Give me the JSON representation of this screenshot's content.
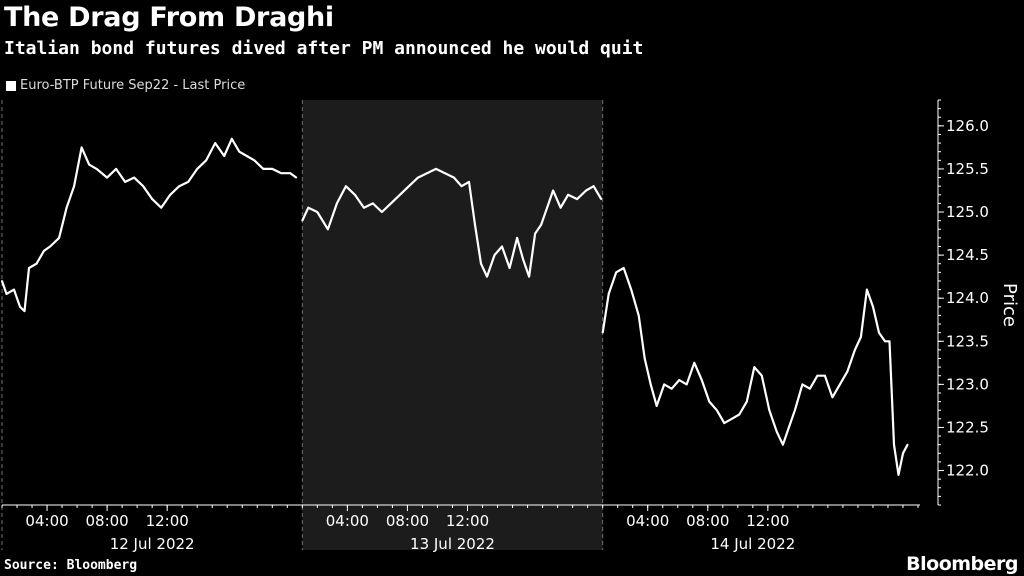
{
  "header": {
    "title": "The Drag From Draghi",
    "subtitle": "Italian bond futures dived after PM announced he would quit"
  },
  "footer": {
    "source": "Source: Bloomberg",
    "brand": "Bloomberg"
  },
  "colors": {
    "background": "#000000",
    "highlight_band": "#1c1c1c",
    "line": "#ffffff",
    "grid": "#6e6e6e"
  },
  "chart_data": {
    "type": "line",
    "ylabel": "Price",
    "ylim": [
      121.6,
      126.3
    ],
    "y_axis_side": "right",
    "y_ticks": [
      122.0,
      122.5,
      123.0,
      123.5,
      124.0,
      124.5,
      125.0,
      125.5,
      126.0
    ],
    "y_tick_labels": [
      "122.0",
      "122.5",
      "123.0",
      "123.5",
      "124.0",
      "124.5",
      "125.0",
      "125.5",
      "126.0"
    ],
    "x_unit": "hours since 12 Jul 2022 01:00",
    "xlim": [
      0,
      61
    ],
    "x_ticks": [
      3,
      7,
      11,
      23,
      27,
      31,
      43,
      47,
      51
    ],
    "x_tick_labels": [
      "04:00",
      "08:00",
      "12:00",
      "04:00",
      "08:00",
      "12:00",
      "04:00",
      "08:00",
      "12:00"
    ],
    "day_labels": [
      "12 Jul 2022",
      "13 Jul 2022",
      "14 Jul 2022"
    ],
    "day_label_centers": [
      10,
      30,
      50
    ],
    "session_separators": [
      20,
      40
    ],
    "highlighted_session": [
      20,
      40
    ],
    "legend": "Euro-BTP Future Sep22 - Last Price",
    "legend_position": "top-left",
    "grid": "vertical dashed at session boundaries",
    "series": [
      {
        "name": "Euro-BTP Future Sep22 - Last Price",
        "points": [
          [
            0.0,
            124.2
          ],
          [
            0.3,
            124.05
          ],
          [
            0.8,
            124.1
          ],
          [
            1.2,
            123.9
          ],
          [
            1.5,
            123.85
          ],
          [
            1.8,
            124.35
          ],
          [
            2.3,
            124.4
          ],
          [
            2.8,
            124.55
          ],
          [
            3.2,
            124.6
          ],
          [
            3.8,
            124.7
          ],
          [
            4.3,
            125.05
          ],
          [
            4.8,
            125.3
          ],
          [
            5.3,
            125.75
          ],
          [
            5.8,
            125.55
          ],
          [
            6.3,
            125.5
          ],
          [
            7.0,
            125.4
          ],
          [
            7.6,
            125.5
          ],
          [
            8.2,
            125.35
          ],
          [
            8.8,
            125.4
          ],
          [
            9.4,
            125.3
          ],
          [
            10.0,
            125.15
          ],
          [
            10.6,
            125.05
          ],
          [
            11.2,
            125.2
          ],
          [
            11.8,
            125.3
          ],
          [
            12.4,
            125.35
          ],
          [
            13.0,
            125.5
          ],
          [
            13.6,
            125.6
          ],
          [
            14.2,
            125.8
          ],
          [
            14.8,
            125.65
          ],
          [
            15.3,
            125.85
          ],
          [
            15.8,
            125.7
          ],
          [
            16.3,
            125.65
          ],
          [
            16.8,
            125.6
          ],
          [
            17.4,
            125.5
          ],
          [
            18.0,
            125.5
          ],
          [
            18.6,
            125.45
          ],
          [
            19.2,
            125.45
          ],
          [
            19.6,
            125.4
          ],
          [
            20.0,
            124.9
          ],
          [
            20.4,
            125.05
          ],
          [
            21.0,
            125.0
          ],
          [
            21.7,
            124.8
          ],
          [
            22.3,
            125.1
          ],
          [
            22.9,
            125.3
          ],
          [
            23.5,
            125.2
          ],
          [
            24.1,
            125.05
          ],
          [
            24.7,
            125.1
          ],
          [
            25.3,
            125.0
          ],
          [
            25.9,
            125.1
          ],
          [
            26.5,
            125.2
          ],
          [
            27.1,
            125.3
          ],
          [
            27.7,
            125.4
          ],
          [
            28.3,
            125.45
          ],
          [
            28.9,
            125.5
          ],
          [
            29.5,
            125.45
          ],
          [
            30.1,
            125.4
          ],
          [
            30.6,
            125.3
          ],
          [
            31.1,
            125.35
          ],
          [
            31.5,
            124.85
          ],
          [
            31.9,
            124.4
          ],
          [
            32.3,
            124.25
          ],
          [
            32.8,
            124.5
          ],
          [
            33.3,
            124.6
          ],
          [
            33.8,
            124.35
          ],
          [
            34.3,
            124.7
          ],
          [
            34.7,
            124.45
          ],
          [
            35.1,
            124.25
          ],
          [
            35.5,
            124.75
          ],
          [
            35.9,
            124.85
          ],
          [
            36.3,
            125.05
          ],
          [
            36.7,
            125.25
          ],
          [
            37.2,
            125.05
          ],
          [
            37.7,
            125.2
          ],
          [
            38.3,
            125.15
          ],
          [
            38.9,
            125.25
          ],
          [
            39.4,
            125.3
          ],
          [
            39.9,
            125.15
          ],
          [
            40.0,
            123.6
          ],
          [
            40.4,
            124.05
          ],
          [
            40.9,
            124.3
          ],
          [
            41.4,
            124.35
          ],
          [
            41.9,
            124.1
          ],
          [
            42.4,
            123.8
          ],
          [
            42.8,
            123.3
          ],
          [
            43.2,
            123.0
          ],
          [
            43.6,
            122.75
          ],
          [
            44.1,
            123.0
          ],
          [
            44.6,
            122.95
          ],
          [
            45.1,
            123.05
          ],
          [
            45.6,
            123.0
          ],
          [
            46.1,
            123.25
          ],
          [
            46.6,
            123.05
          ],
          [
            47.1,
            122.8
          ],
          [
            47.6,
            122.7
          ],
          [
            48.1,
            122.55
          ],
          [
            48.6,
            122.6
          ],
          [
            49.1,
            122.65
          ],
          [
            49.6,
            122.8
          ],
          [
            50.1,
            123.2
          ],
          [
            50.6,
            123.1
          ],
          [
            51.1,
            122.7
          ],
          [
            51.6,
            122.45
          ],
          [
            52.0,
            122.3
          ],
          [
            52.4,
            122.5
          ],
          [
            52.8,
            122.7
          ],
          [
            53.3,
            123.0
          ],
          [
            53.8,
            122.95
          ],
          [
            54.3,
            123.1
          ],
          [
            54.8,
            123.1
          ],
          [
            55.3,
            122.85
          ],
          [
            55.8,
            123.0
          ],
          [
            56.3,
            123.15
          ],
          [
            56.8,
            123.4
          ],
          [
            57.2,
            123.55
          ],
          [
            57.6,
            124.1
          ],
          [
            58.0,
            123.9
          ],
          [
            58.4,
            123.6
          ],
          [
            58.8,
            123.5
          ],
          [
            59.1,
            123.5
          ],
          [
            59.4,
            122.3
          ],
          [
            59.7,
            121.95
          ],
          [
            60.0,
            122.2
          ],
          [
            60.3,
            122.3
          ]
        ]
      }
    ]
  }
}
